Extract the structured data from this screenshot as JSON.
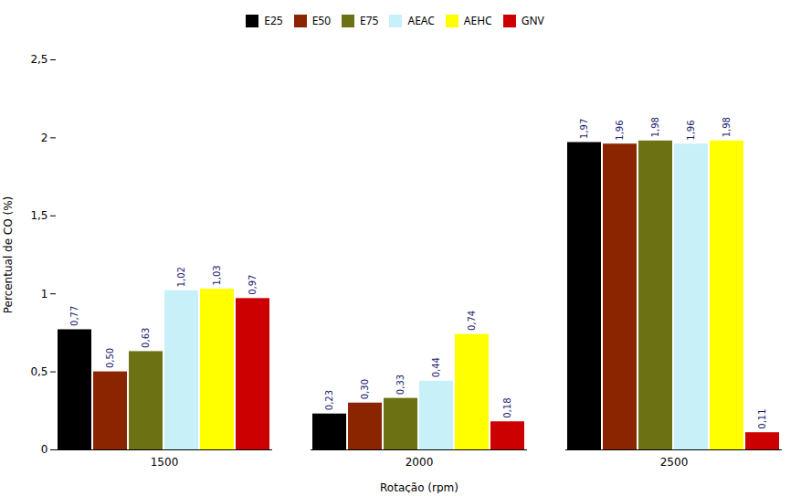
{
  "chart_data": {
    "type": "bar",
    "xlabel": "Rotação (rpm)",
    "ylabel": "Percentual de CO (%)",
    "categories": [
      "1500",
      "2000",
      "2500"
    ],
    "series": [
      {
        "name": "E25",
        "color": "#000000",
        "values": [
          0.77,
          0.23,
          1.97
        ],
        "value_labels": [
          "0,77",
          "0,23",
          "1,97"
        ]
      },
      {
        "name": "E50",
        "color": "#8B2500",
        "values": [
          0.5,
          0.3,
          1.96
        ],
        "value_labels": [
          "0,50",
          "0,30",
          "1,96"
        ]
      },
      {
        "name": "E75",
        "color": "#6B7213",
        "values": [
          0.63,
          0.33,
          1.98
        ],
        "value_labels": [
          "0,63",
          "0,33",
          "1,98"
        ]
      },
      {
        "name": "AEAC",
        "color": "#C8F0F8",
        "values": [
          1.02,
          0.44,
          1.96
        ],
        "value_labels": [
          "1,02",
          "0,44",
          "1,96"
        ]
      },
      {
        "name": "AEHC",
        "color": "#FFFF00",
        "values": [
          1.03,
          0.74,
          1.98
        ],
        "value_labels": [
          "1,03",
          "0,74",
          "1,98"
        ]
      },
      {
        "name": "GNV",
        "color": "#CC0000",
        "values": [
          0.97,
          0.18,
          0.11
        ],
        "value_labels": [
          "0,97",
          "0,18",
          "0,11"
        ]
      }
    ],
    "ylim": [
      0,
      2.5
    ],
    "yticks": [
      0,
      {
        "value": 0.5,
        "label": "0,5"
      },
      1,
      {
        "value": 1.5,
        "label": "1,5"
      },
      2,
      {
        "value": 2.5,
        "label": "2,5"
      }
    ],
    "grid": false,
    "legend": "top",
    "data_labels": true
  }
}
